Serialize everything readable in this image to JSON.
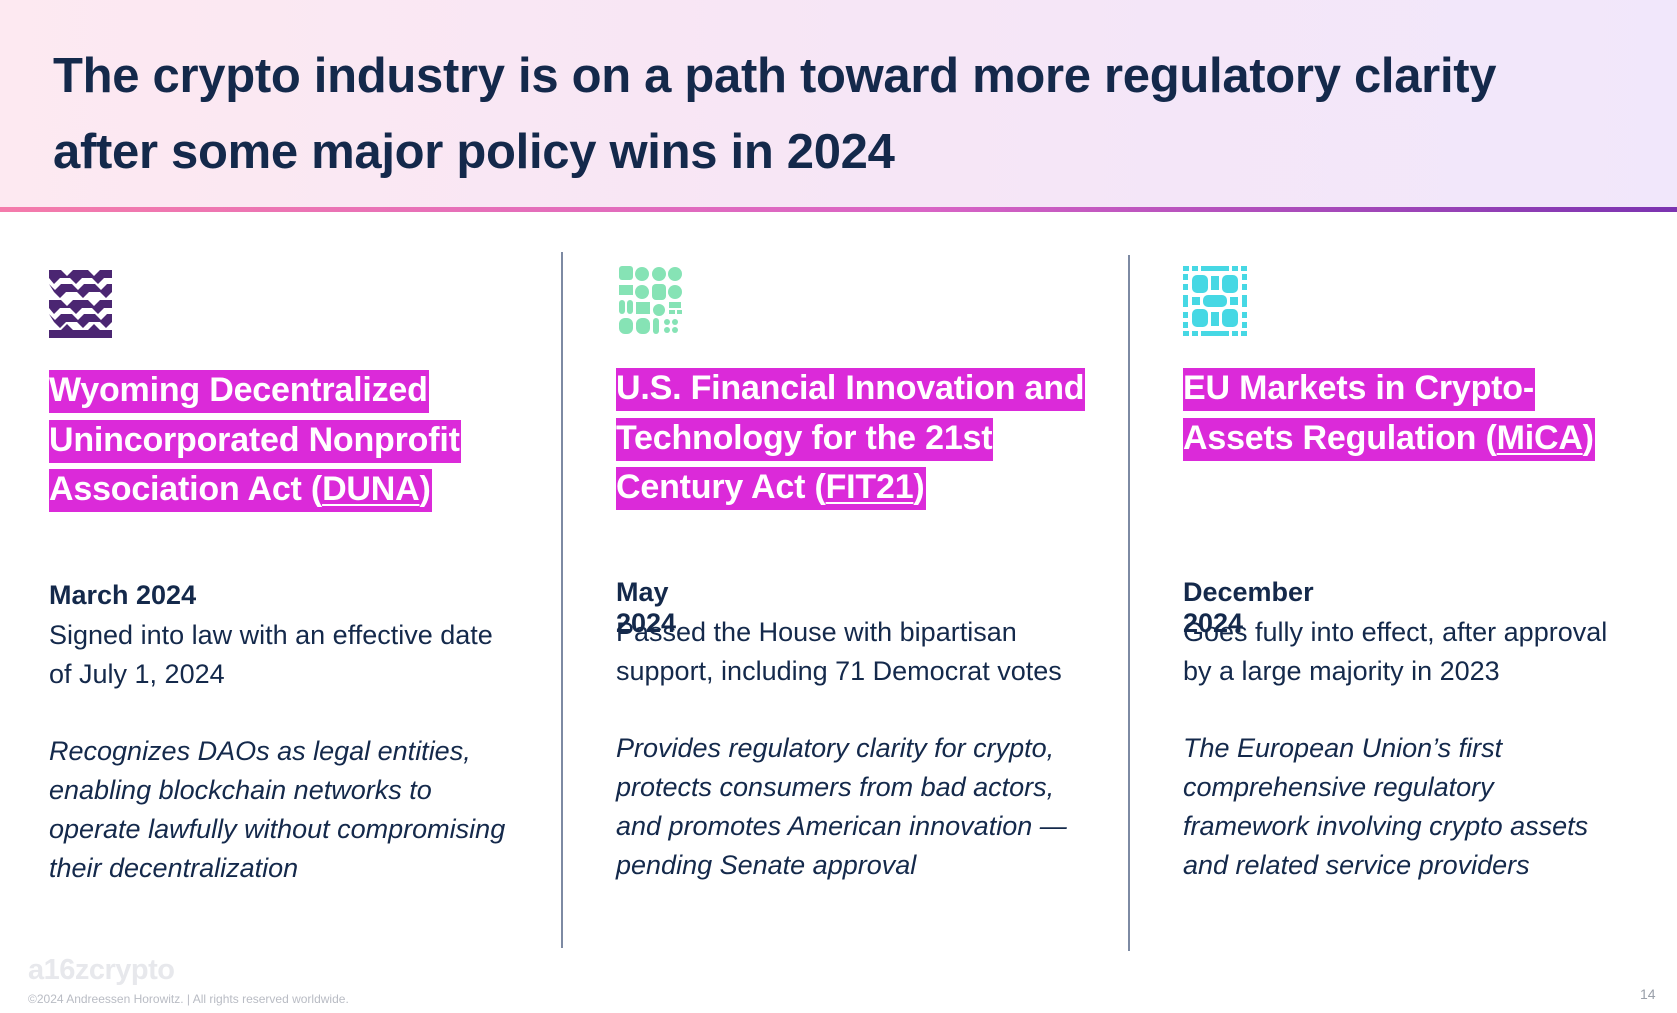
{
  "header": {
    "title": "The crypto industry is on a path toward more regulatory clarity after some major policy wins in 2024"
  },
  "colors": {
    "navy": "#14294b",
    "highlight": "#db2ad9",
    "icon_duna": "#4b2672",
    "icon_fit21": "#86e3b5",
    "icon_mica": "#46d8e4"
  },
  "columns": [
    {
      "icon": "purple-pattern-icon",
      "title_pre": "Wyoming Decentralized Unincorporated Nonprofit Association Act (",
      "title_acronym": "DUNA",
      "title_post": ")",
      "date": "March 2024",
      "status": "Signed into law with an effective date of July 1, 2024",
      "description": "Recognizes DAOs as legal entities, enabling blockchain networks to operate lawfully without compromising their decentralization"
    },
    {
      "icon": "green-pattern-icon",
      "title_pre": "U.S. Financial Innovation and Technology for the 21st Century Act (",
      "title_acronym": "FIT21",
      "title_post": ")",
      "date": "May 2024",
      "status": "Passed the House with bipartisan support, including 71 Democrat votes",
      "description": "Provides regulatory clarity for crypto, protects consumers from bad actors, and promotes American innovation — pending Senate approval"
    },
    {
      "icon": "cyan-pattern-icon",
      "title_pre": "EU Markets in Crypto-Assets Regulation (",
      "title_acronym": "MiCA",
      "title_post": ")",
      "date": "December 2024",
      "status": "Goes fully into effect, after approval by a large majority in 2023",
      "description": "The European Union’s first comprehensive regulatory framework involving crypto assets and related service providers"
    }
  ],
  "footer": {
    "logo": "a16zcrypto",
    "copyright": "©2024 Andreessen Horowitz. |  All rights reserved worldwide.",
    "page_number": "14"
  }
}
